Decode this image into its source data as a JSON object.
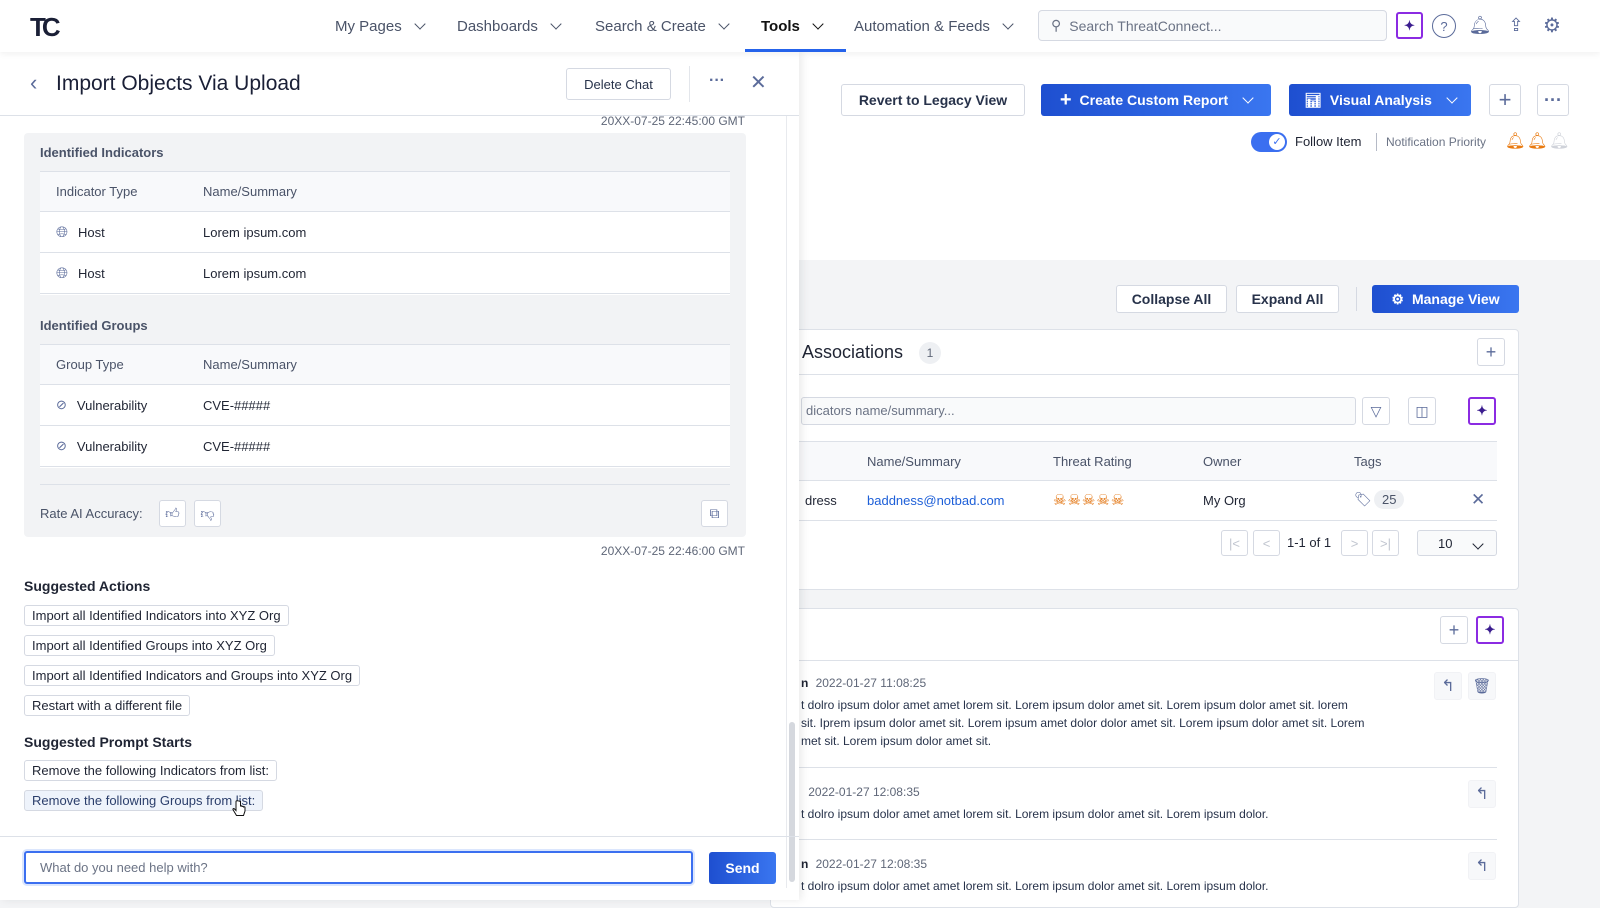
{
  "header": {
    "logo": "TC",
    "nav": [
      {
        "label": "My Pages"
      },
      {
        "label": "Dashboards"
      },
      {
        "label": "Search & Create"
      },
      {
        "label": "Tools",
        "active": true
      },
      {
        "label": "Automation & Feeds"
      }
    ],
    "search_placeholder": "Search ThreatConnect...",
    "icons": [
      "ai-assistant-icon",
      "help-icon",
      "bell-icon",
      "upload-icon",
      "gear-icon"
    ]
  },
  "chat": {
    "title": "Import Objects Via Upload",
    "delete_label": "Delete Chat",
    "timestamp1": "20XX-07-25 22:45:00 GMT",
    "timestamp2": "20XX-07-25 22:46:00 GMT",
    "indicators": {
      "title": "Identified Indicators",
      "columns": [
        "Indicator Type",
        "Name/Summary"
      ],
      "rows": [
        {
          "type": "Host",
          "name": "Lorem ipsum.com"
        },
        {
          "type": "Host",
          "name": "Lorem ipsum.com"
        }
      ]
    },
    "groups": {
      "title": "Identified Groups",
      "columns": [
        "Group Type",
        "Name/Summary"
      ],
      "rows": [
        {
          "type": "Vulnerability",
          "name": "CVE-#####"
        },
        {
          "type": "Vulnerability",
          "name": "CVE-#####"
        }
      ]
    },
    "rate_label": "Rate AI Accuracy:",
    "suggested_actions_title": "Suggested Actions",
    "suggested_actions": [
      "Import all Identified Indicators into XYZ Org",
      "Import all Identified Groups into XYZ Org",
      "Import all Identified Indicators and Groups into XYZ Org",
      "Restart with a different file"
    ],
    "prompt_starts_title": "Suggested Prompt Starts",
    "prompt_starts": [
      "Remove the following Indicators from list:",
      "Remove the following Groups from list:"
    ],
    "input_placeholder": "What do you need help with?",
    "send_label": "Send"
  },
  "toolbar": {
    "revert": "Revert to Legacy View",
    "create_report": "Create Custom Report",
    "visual_analysis": "Visual Analysis",
    "follow_label": "Follow Item",
    "follow_on": true,
    "notification_label": "Notification Priority",
    "notification_level": 2,
    "notification_max": 3,
    "collapse": "Collapse All",
    "expand": "Expand All",
    "manage_view": "Manage View"
  },
  "associations": {
    "title": "Associations",
    "count": "1",
    "search_placeholder": "dicators name/summary...",
    "columns": [
      "Name/Summary",
      "Threat Rating",
      "Owner",
      "Tags"
    ],
    "row": {
      "type_partial": "dress",
      "name": "baddness@notbad.com",
      "threat_rating": 5,
      "owner": "My Org",
      "tags": "25"
    },
    "pagination": "1-1 of 1",
    "page_size": "10"
  },
  "comments": [
    {
      "author_partial": "n",
      "time": "2022-01-27 11:08:25",
      "lines": [
        "t dolro ipsum dolor amet amet lorem sit. Lorem ipsum dolor amet sit. Lorem ipsum dolor amet sit. lorem",
        "sit. Iprem ipsum dolor amet sit. Lorem ipsum amet dolor dolor amet sit. Lorem ipsum dolor amet sit. Lorem",
        "met sit. Lorem ipsum dolor amet sit."
      ]
    },
    {
      "author_partial": "",
      "time": "2022-01-27 12:08:35",
      "lines": [
        "t dolro ipsum dolor amet amet lorem sit. Lorem ipsum dolor amet sit. Lorem ipsum dolor."
      ]
    },
    {
      "author_partial": "n",
      "time": "2022-01-27 12:08:35",
      "lines": [
        "t dolro ipsum dolor amet amet lorem sit. Lorem ipsum dolor amet sit. Lorem ipsum dolor."
      ]
    }
  ],
  "colors": {
    "primary": "#2563eb",
    "ai_border": "#8b2be2",
    "threat": "#e06b00",
    "link": "#1d5fd8"
  }
}
